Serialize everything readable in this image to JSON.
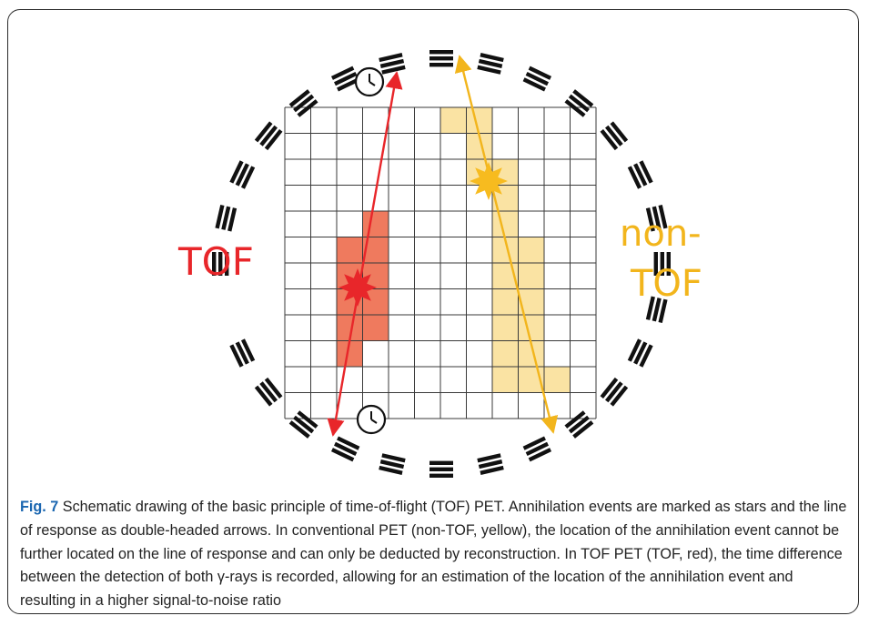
{
  "figure": {
    "label_tof": "TOF",
    "label_nontof_line1": "non-",
    "label_nontof_line2": "TOF",
    "colors": {
      "tof": "#e8262a",
      "tof_fill": "#ef7a5e",
      "nontof": "#f2b51c",
      "nontof_fill": "#fae3a3",
      "nontof_star": "#f7bb1f",
      "detector": "#111111",
      "grid": "#3a3a3a"
    },
    "icons": {
      "clock": "clock-icon"
    }
  },
  "caption": {
    "label": "Fig. 7",
    "text": " Schematic drawing of the basic principle of time-of-flight (TOF) PET. Annihilation events are marked as stars and the line of response as double-headed arrows. In conventional PET (non-TOF, yellow), the location of the annihilation event cannot be further located on the line of response and can only be deducted by reconstruction. In TOF PET (TOF, red), the time difference between the detection of both γ-rays is recorded, allowing for an estimation of the location of the annihilation event and resulting in a higher signal-to-noise ratio"
  }
}
